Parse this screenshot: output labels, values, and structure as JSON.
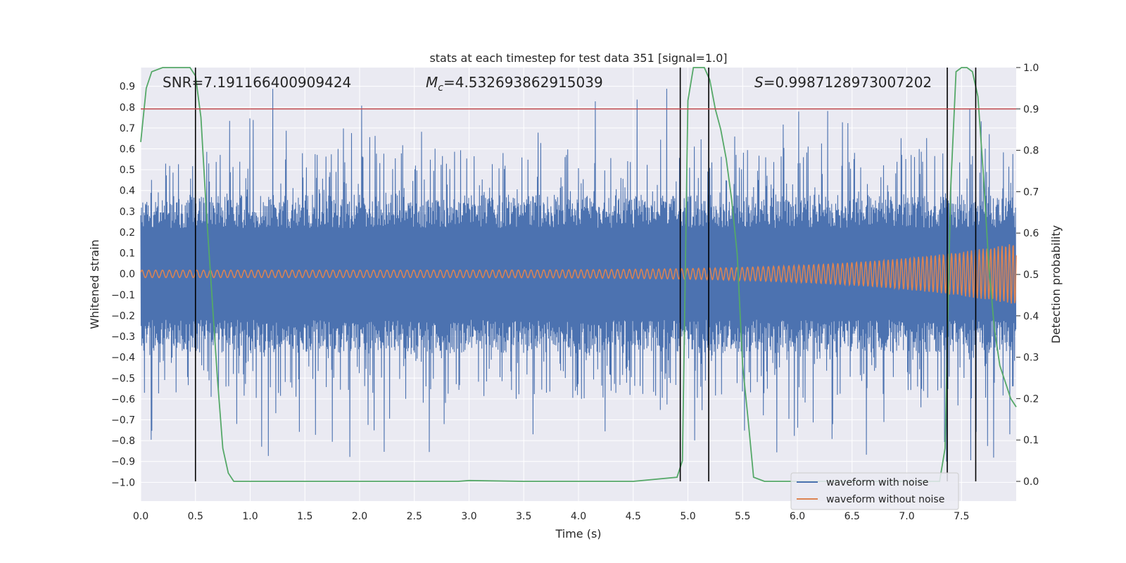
{
  "chart_data": {
    "type": "line",
    "title": "stats at each timestep for test data 351 [signal=1.0]",
    "xlabel": "Time (s)",
    "ylabel_left": "Whitened strain",
    "ylabel_right": "Detection probability",
    "xlim": [
      0.0,
      8.0
    ],
    "ylim_left": [
      -1.09,
      0.99
    ],
    "ylim_right": [
      -0.04762,
      1.0
    ],
    "x_ticks": [
      "0.0",
      "0.5",
      "1.0",
      "1.5",
      "2.0",
      "2.5",
      "3.0",
      "3.5",
      "4.0",
      "4.5",
      "5.0",
      "5.5",
      "6.0",
      "6.5",
      "7.0",
      "7.5"
    ],
    "y_left_ticks": [
      "0.9",
      "0.8",
      "0.7",
      "0.6",
      "0.5",
      "0.4",
      "0.3",
      "0.2",
      "0.1",
      "0.0",
      "−0.1",
      "−0.2",
      "−0.3",
      "−0.4",
      "−0.5",
      "−0.6",
      "−0.7",
      "−0.8",
      "−0.9",
      "−1.0"
    ],
    "y_right_ticks": [
      "1.0",
      "0.9",
      "0.8",
      "0.7",
      "0.6",
      "0.5",
      "0.4",
      "0.3",
      "0.2",
      "0.1",
      "0.0"
    ],
    "annotations": {
      "snr": "SNR=7.191166400909424",
      "mc_symbol": "M",
      "mc_sub": "c",
      "mc_value": "=4.532693862915039",
      "s_symbol": "S",
      "s_value": "=0.9987128973007202"
    },
    "threshold": 0.9,
    "vertical_lines": [
      0.5,
      4.93,
      5.19,
      7.37,
      7.63
    ],
    "series": [
      {
        "name": "waveform with noise",
        "color": "#4c72b0",
        "description": "dense noisy strain, amplitude roughly ±0.35 with spikes to about ±0.9"
      },
      {
        "name": "waveform without noise",
        "color": "#dd8452",
        "description": "chirp signal, amplitude growing from about 0.02 to 0.15 at t=8"
      },
      {
        "name": "detection probability",
        "color": "#55a868",
        "x": [
          0.0,
          0.05,
          0.1,
          0.2,
          0.3,
          0.4,
          0.45,
          0.5,
          0.55,
          0.6,
          0.65,
          0.7,
          0.75,
          0.8,
          0.85,
          1.0,
          2.0,
          2.9,
          3.0,
          3.5,
          4.5,
          4.9,
          4.95,
          5.0,
          5.05,
          5.1,
          5.15,
          5.2,
          5.25,
          5.3,
          5.35,
          5.4,
          5.45,
          5.5,
          5.55,
          5.6,
          5.7,
          6.0,
          6.5,
          7.0,
          7.3,
          7.35,
          7.4,
          7.45,
          7.5,
          7.55,
          7.6,
          7.65,
          7.7,
          7.75,
          7.8,
          7.85,
          7.9,
          7.95,
          8.0
        ],
        "y": [
          0.82,
          0.95,
          0.99,
          1.0,
          1.0,
          1.0,
          1.0,
          0.98,
          0.88,
          0.65,
          0.45,
          0.25,
          0.08,
          0.02,
          0.0,
          0.0,
          0.0,
          0.0,
          0.002,
          0.0,
          0.0,
          0.01,
          0.05,
          0.92,
          1.0,
          1.0,
          1.0,
          0.97,
          0.9,
          0.85,
          0.78,
          0.68,
          0.55,
          0.28,
          0.15,
          0.01,
          0.0,
          0.0,
          0.0,
          0.0,
          0.0,
          0.08,
          0.7,
          0.99,
          1.0,
          1.0,
          0.99,
          0.93,
          0.74,
          0.52,
          0.37,
          0.28,
          0.24,
          0.2,
          0.18
        ]
      },
      {
        "name": "threshold",
        "color": "#c44e52",
        "values_right_axis": [
          0.9
        ]
      }
    ],
    "legend": [
      "waveform with noise",
      "waveform without noise"
    ],
    "legend_position": "lower-right",
    "grid": true
  }
}
